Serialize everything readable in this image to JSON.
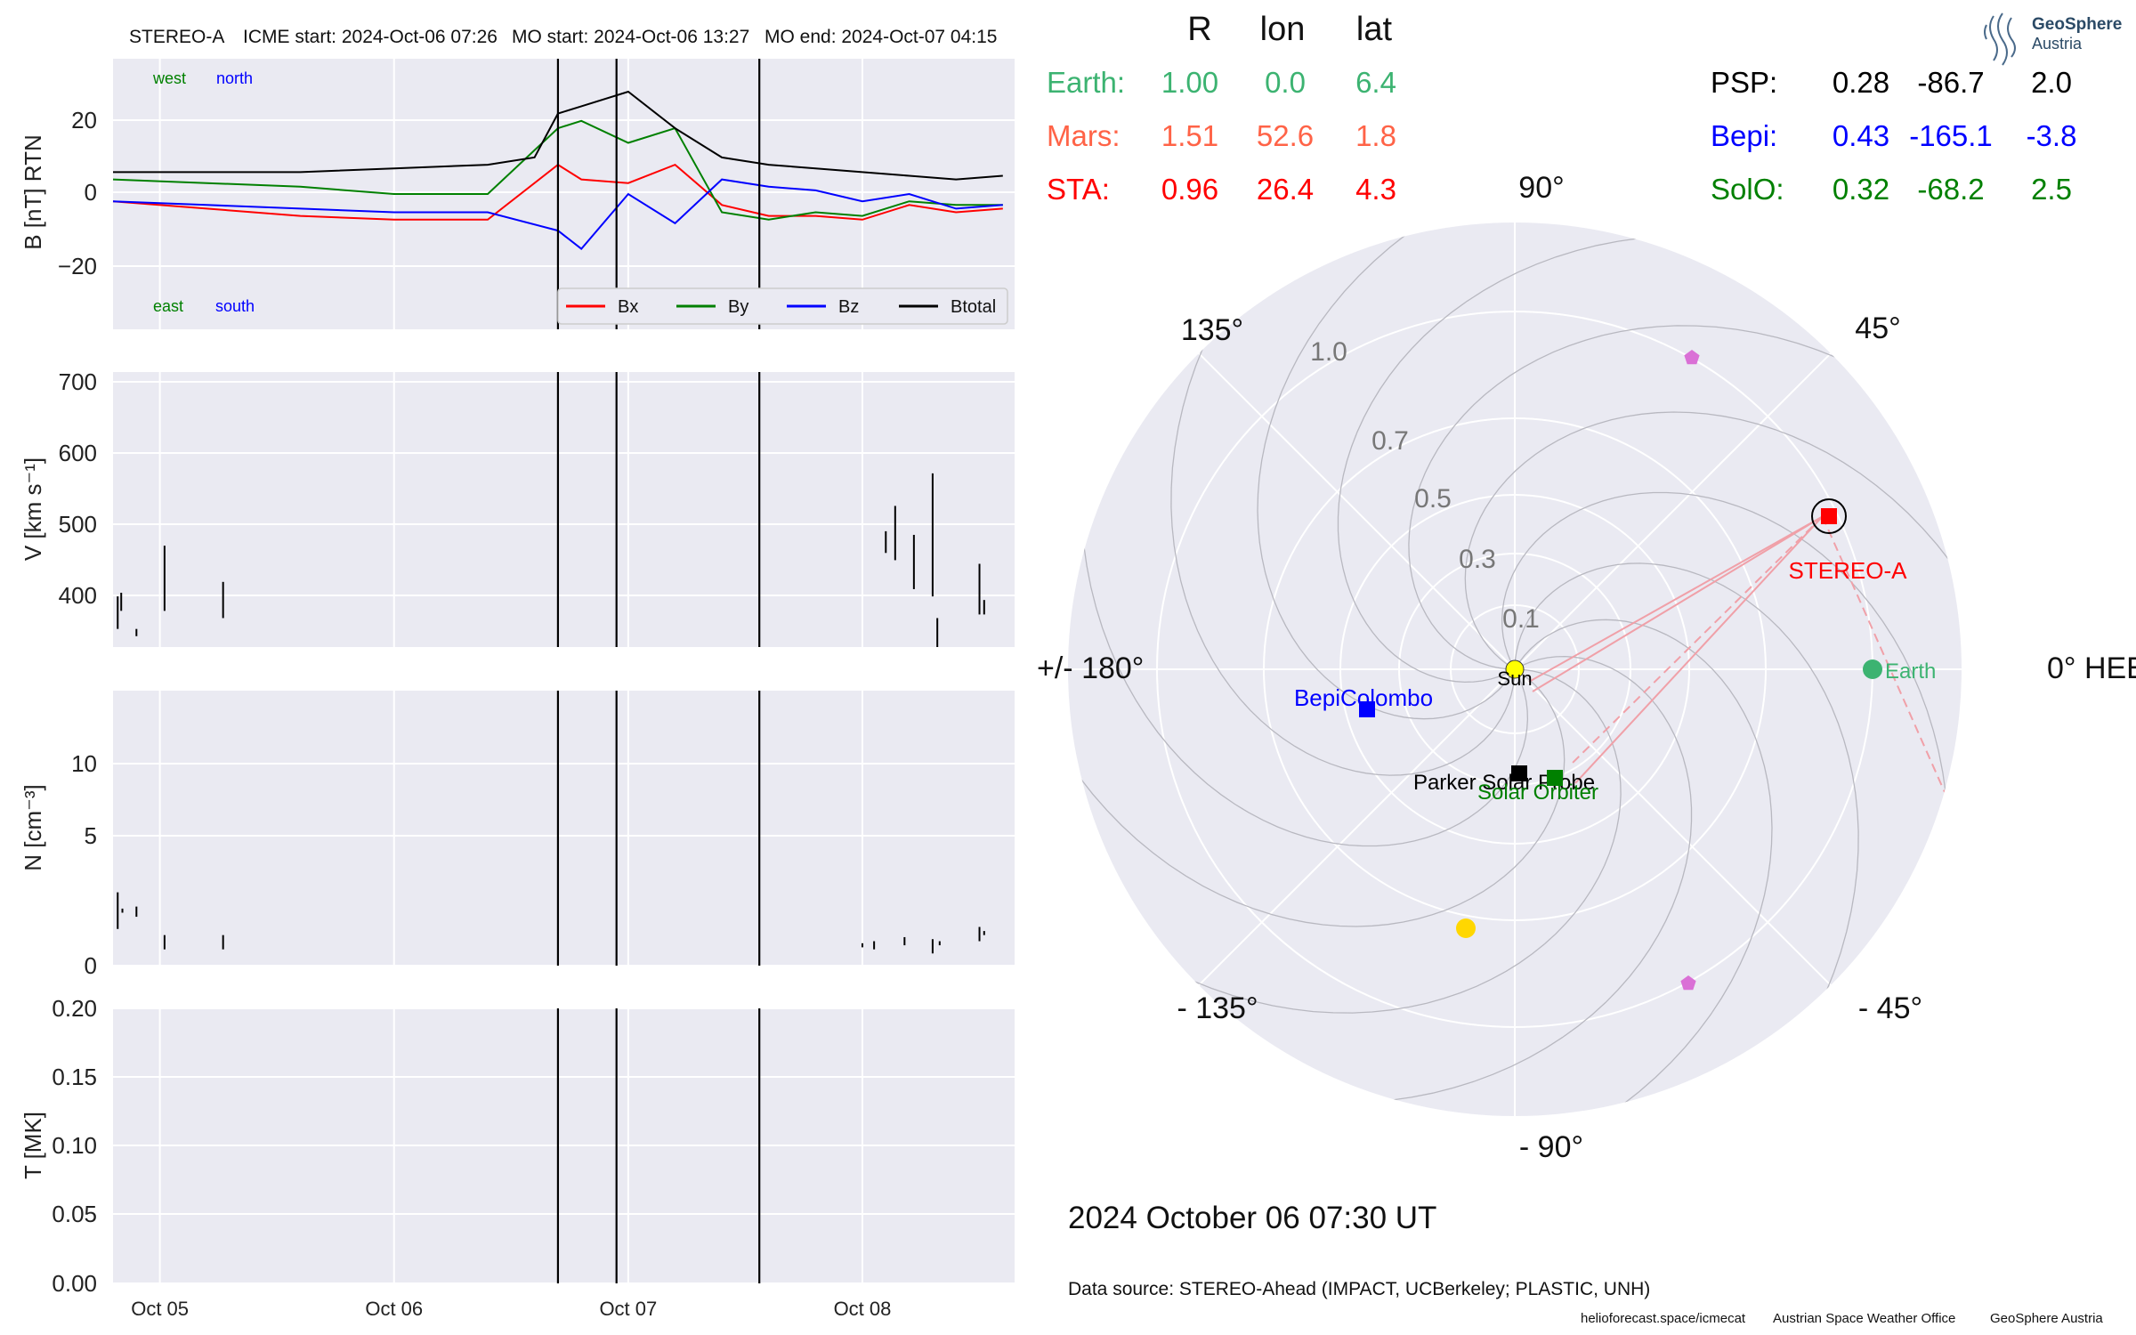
{
  "header": {
    "spacecraft": "STEREO-A",
    "icme_start": "ICME start: 2024-Oct-06 07:26",
    "mo_start": "MO start: 2024-Oct-06 13:27",
    "mo_end": "MO end: 2024-Oct-07 04:15"
  },
  "chart_data": [
    {
      "type": "line",
      "ylabel": "B [nT] RTN",
      "ylim": [
        -37,
        37
      ],
      "yticks": [
        "20",
        "0",
        "−20"
      ],
      "series": [
        {
          "name": "Bx",
          "color": "#ff0000",
          "t": [
            0,
            0.4,
            0.8,
            1.2,
            1.6,
            1.9,
            2.0,
            2.2,
            2.4,
            2.6,
            2.8,
            3.0,
            3.2,
            3.4,
            3.6,
            3.8
          ],
          "values": [
            -2,
            -4,
            -6,
            -7,
            -7,
            8,
            4,
            3,
            8,
            -3,
            -6,
            -6,
            -7,
            -3,
            -5,
            -4
          ]
        },
        {
          "name": "By",
          "color": "#008000",
          "t": [
            0,
            0.4,
            0.8,
            1.2,
            1.6,
            1.9,
            2.0,
            2.2,
            2.4,
            2.6,
            2.8,
            3.0,
            3.2,
            3.4,
            3.6,
            3.8
          ],
          "values": [
            4,
            3,
            2,
            0,
            0,
            18,
            20,
            14,
            18,
            -5,
            -7,
            -5,
            -6,
            -2,
            -3,
            -3
          ]
        },
        {
          "name": "Bz",
          "color": "#0000ff",
          "t": [
            0,
            0.4,
            0.8,
            1.2,
            1.6,
            1.9,
            2.0,
            2.2,
            2.4,
            2.6,
            2.8,
            3.0,
            3.2,
            3.4,
            3.6,
            3.8
          ],
          "values": [
            -2,
            -3,
            -4,
            -5,
            -5,
            -10,
            -15,
            0,
            -8,
            4,
            2,
            1,
            -2,
            0,
            -4,
            -3
          ]
        },
        {
          "name": "Btotal",
          "color": "#000000",
          "t": [
            0,
            0.4,
            0.8,
            1.2,
            1.6,
            1.8,
            1.9,
            2.0,
            2.2,
            2.4,
            2.6,
            2.8,
            3.0,
            3.2,
            3.4,
            3.6,
            3.8
          ],
          "values": [
            6,
            6,
            6,
            7,
            8,
            10,
            22,
            24,
            28,
            18,
            10,
            8,
            7,
            6,
            5,
            4,
            5
          ]
        }
      ],
      "annotations": {
        "west": "west",
        "north": "north",
        "east": "east",
        "south": "south"
      }
    },
    {
      "type": "line",
      "ylabel": "V [km s⁻¹]",
      "ylim": [
        330,
        710
      ],
      "yticks": [
        "700",
        "600",
        "500",
        "400"
      ],
      "segments": [
        {
          "t": 0.02,
          "y1": 355,
          "y2": 400
        },
        {
          "t": 0.035,
          "y1": 380,
          "y2": 405
        },
        {
          "t": 0.1,
          "y1": 345,
          "y2": 355
        },
        {
          "t": 0.22,
          "y1": 380,
          "y2": 470
        },
        {
          "t": 0.47,
          "y1": 370,
          "y2": 420
        },
        {
          "t": 3.3,
          "y1": 460,
          "y2": 490
        },
        {
          "t": 3.34,
          "y1": 450,
          "y2": 525
        },
        {
          "t": 3.42,
          "y1": 410,
          "y2": 485
        },
        {
          "t": 3.5,
          "y1": 400,
          "y2": 570
        },
        {
          "t": 3.52,
          "y1": 330,
          "y2": 370
        },
        {
          "t": 3.7,
          "y1": 375,
          "y2": 445
        },
        {
          "t": 3.72,
          "y1": 375,
          "y2": 395
        }
      ]
    },
    {
      "type": "line",
      "ylabel": "N [cm⁻³]",
      "ylim": [
        0,
        13.5
      ],
      "yticks": [
        "10",
        "5",
        "0"
      ],
      "segments": [
        {
          "t": 0.02,
          "y1": 1.8,
          "y2": 3.6
        },
        {
          "t": 0.04,
          "y1": 2.6,
          "y2": 2.8
        },
        {
          "t": 0.1,
          "y1": 2.4,
          "y2": 2.9
        },
        {
          "t": 0.22,
          "y1": 0.8,
          "y2": 1.5
        },
        {
          "t": 0.47,
          "y1": 0.8,
          "y2": 1.5
        },
        {
          "t": 3.2,
          "y1": 0.9,
          "y2": 1.1
        },
        {
          "t": 3.25,
          "y1": 0.8,
          "y2": 1.2
        },
        {
          "t": 3.38,
          "y1": 1.0,
          "y2": 1.4
        },
        {
          "t": 3.5,
          "y1": 0.6,
          "y2": 1.3
        },
        {
          "t": 3.53,
          "y1": 1.0,
          "y2": 1.2
        },
        {
          "t": 3.7,
          "y1": 1.2,
          "y2": 1.9
        },
        {
          "t": 3.72,
          "y1": 1.5,
          "y2": 1.7
        }
      ]
    },
    {
      "type": "line",
      "ylabel": "T [MK]",
      "ylim": [
        0,
        0.2
      ],
      "yticks": [
        "0.20",
        "0.15",
        "0.10",
        "0.05",
        "0.00"
      ]
    },
    {
      "type": "scatter",
      "subtype": "polar",
      "r_labels": [
        "0.1",
        "0.3",
        "0.5",
        "0.7",
        "1.0"
      ],
      "angle_labels": {
        "a0": "0° HEEQ",
        "a45": "45°",
        "a90": "90°",
        "a135": "135°",
        "a180": "+/- 180°",
        "am135": "- 135°",
        "am90": "- 90°",
        "am45": "- 45°"
      },
      "points": [
        {
          "label": "STEREO-A",
          "r": 0.96,
          "lon": 26.4,
          "color": "#ff0000",
          "marker": "square",
          "ring": true
        },
        {
          "label": "Earth",
          "r": 1.0,
          "lon": 0.0,
          "color": "#3cb371",
          "marker": "circle"
        },
        {
          "label": "BepiColombo",
          "r": 0.43,
          "lon": -165.1,
          "color": "#0000ff",
          "marker": "square"
        },
        {
          "label": "Parker Solar Probe",
          "r": 0.28,
          "lon": -86.7,
          "color": "#000000",
          "marker": "square"
        },
        {
          "label": "Solar Orbiter",
          "r": 0.32,
          "lon": -68.2,
          "color": "#008000",
          "marker": "square"
        },
        {
          "label": "Sun",
          "r": 0.0,
          "lon": 0.0,
          "color": "#ffff00",
          "marker": "circle"
        },
        {
          "label": "",
          "r": 0.7,
          "lon": -107,
          "color": "#ffd700",
          "marker": "circle"
        },
        {
          "label": "",
          "r": 1.0,
          "lon": 64,
          "color": "#da70d6",
          "marker": "pentagon"
        },
        {
          "label": "",
          "r": 1.0,
          "lon": -64,
          "color": "#da70d6",
          "marker": "pentagon"
        }
      ]
    }
  ],
  "xaxis": {
    "ticks": [
      "Oct 05",
      "Oct 06",
      "Oct 07",
      "Oct 08"
    ]
  },
  "legend": [
    "Bx",
    "By",
    "Bz",
    "Btotal"
  ],
  "positions": {
    "header": [
      "R",
      "lon",
      "lat"
    ],
    "rows_left": [
      {
        "name": "Earth:",
        "R": "1.00",
        "lon": "0.0",
        "lat": "6.4",
        "color": "#3cb371"
      },
      {
        "name": "Mars:",
        "R": "1.51",
        "lon": "52.6",
        "lat": "1.8",
        "color": "#ff6347"
      },
      {
        "name": "STA:",
        "R": "0.96",
        "lon": "26.4",
        "lat": "4.3",
        "color": "#ff0000"
      }
    ],
    "rows_right": [
      {
        "name": "PSP:",
        "R": "0.28",
        "lon": "-86.7",
        "lat": "2.0",
        "color": "#000000"
      },
      {
        "name": "Bepi:",
        "R": "0.43",
        "lon": "-165.1",
        "lat": "-3.8",
        "color": "#0000ff"
      },
      {
        "name": "SolO:",
        "R": "0.32",
        "lon": "-68.2",
        "lat": "2.5",
        "color": "#008000"
      }
    ]
  },
  "datetime": "2024 October 06  07:30 UT",
  "datasource": "Data source: STEREO-Ahead (IMPACT, UCBerkeley; PLASTIC, UNH)",
  "footer": {
    "url": "helioforecast.space/icmecat",
    "office": "Austrian Space Weather Office",
    "org": "GeoSphere Austria"
  },
  "logo": {
    "line1": "GeoSphere",
    "line2": "Austria"
  }
}
